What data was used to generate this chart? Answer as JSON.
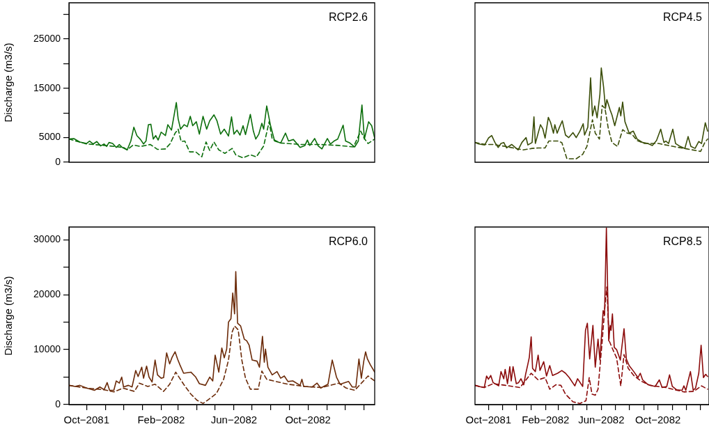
{
  "chart_data": [
    {
      "type": "line",
      "title": "RCP2.6",
      "ylabel": "Discharge (m3/s)",
      "xlim": [
        "2081-09-02",
        "2083-01-19"
      ],
      "ylim": [
        0,
        32300
      ],
      "yticks": [
        0,
        5000,
        {
          "value": 10000,
          "label": null
        },
        15000,
        {
          "value": 20000,
          "label": null
        },
        25000,
        {
          "value": 30000,
          "label": null
        }
      ],
      "tick_labels": "y",
      "grid": false,
      "legend": false,
      "series": [
        {
          "color": "#0b6e0b",
          "line_style": "solid",
          "x": [
            "2081-09-02",
            "2081-09-10",
            "2081-09-20",
            "2081-10-01",
            "2081-10-06",
            "2081-10-12",
            "2081-10-18",
            "2081-10-24",
            "2081-10-30",
            "2081-11-03",
            "2081-11-07",
            "2081-11-13",
            "2081-11-19",
            "2081-11-24",
            "2081-11-29",
            "2081-12-07",
            "2081-12-13",
            "2081-12-18",
            "2081-12-23",
            "2081-12-29",
            "2082-01-03",
            "2082-01-07",
            "2082-01-11",
            "2082-01-15",
            "2082-01-19",
            "2082-01-23",
            "2082-01-27",
            "2082-02-01",
            "2082-02-08",
            "2082-02-12",
            "2082-02-18",
            "2082-02-23",
            "2082-02-26",
            "2082-03-01",
            "2082-03-05",
            "2082-03-11",
            "2082-03-16",
            "2082-03-21",
            "2082-03-25",
            "2082-03-31",
            "2082-04-05",
            "2082-04-11",
            "2082-04-17",
            "2082-04-22",
            "2082-04-29",
            "2082-05-04",
            "2082-05-10",
            "2082-05-16",
            "2082-05-23",
            "2082-05-28",
            "2082-06-01",
            "2082-06-06",
            "2082-06-11",
            "2082-06-16",
            "2082-06-20",
            "2082-06-28",
            "2082-07-03",
            "2082-07-07",
            "2082-07-12",
            "2082-07-17",
            "2082-07-20",
            "2082-07-25",
            "2082-07-31",
            "2082-08-07",
            "2082-08-17",
            "2082-08-25",
            "2082-08-30",
            "2082-09-07",
            "2082-09-18",
            "2082-09-26",
            "2082-09-30",
            "2082-10-04",
            "2082-10-12",
            "2082-10-18",
            "2082-10-24",
            "2082-11-02",
            "2082-11-07",
            "2082-11-13",
            "2082-11-19",
            "2082-11-28",
            "2082-12-02",
            "2082-12-09",
            "2082-12-17",
            "2082-12-23",
            "2082-12-29",
            "2083-01-02",
            "2083-01-09",
            "2083-01-14",
            "2083-01-19"
          ],
          "values": [
            4700,
            4800,
            4100,
            3800,
            4300,
            3700,
            4200,
            3300,
            3700,
            3200,
            4000,
            3800,
            3000,
            3600,
            3000,
            2500,
            4300,
            7100,
            5400,
            4600,
            3700,
            4300,
            7600,
            7700,
            4700,
            5400,
            4500,
            6100,
            5400,
            7600,
            6500,
            10000,
            12100,
            8800,
            6700,
            7600,
            7200,
            9300,
            7400,
            8200,
            5700,
            9300,
            6700,
            8400,
            9600,
            8400,
            5700,
            6700,
            5300,
            9200,
            5700,
            6500,
            5500,
            7400,
            5600,
            9700,
            6300,
            4700,
            5700,
            7900,
            6700,
            11400,
            7600,
            4300,
            3900,
            5900,
            4300,
            4600,
            3000,
            3400,
            4500,
            3400,
            4800,
            3300,
            2700,
            4800,
            3700,
            4300,
            4700,
            7500,
            4300,
            3900,
            3100,
            4300,
            11600,
            4700,
            8200,
            7400,
            4900
          ]
        },
        {
          "color": "#0b6e0b",
          "line_style": "dashed",
          "x": [
            "2081-09-02",
            "2081-10-01",
            "2081-11-01",
            "2081-12-01",
            "2081-12-07",
            "2081-12-17",
            "2081-12-29",
            "2082-01-14",
            "2082-01-26",
            "2082-02-08",
            "2082-02-16",
            "2082-02-24",
            "2082-03-01",
            "2082-03-06",
            "2082-03-12",
            "2082-03-20",
            "2082-03-30",
            "2082-04-09",
            "2082-04-16",
            "2082-04-22",
            "2082-04-29",
            "2082-05-07",
            "2082-05-17",
            "2082-05-29",
            "2082-06-04",
            "2082-06-16",
            "2082-06-28",
            "2082-07-08",
            "2082-07-20",
            "2082-07-29",
            "2082-08-03",
            "2082-08-17",
            "2082-09-18",
            "2082-10-20",
            "2082-11-21",
            "2082-12-15",
            "2082-12-27",
            "2083-01-02",
            "2083-01-08",
            "2083-01-19"
          ],
          "values": [
            4700,
            3700,
            3400,
            3000,
            2500,
            3500,
            3200,
            3600,
            2600,
            2700,
            3800,
            5900,
            6700,
            4200,
            4300,
            2100,
            2100,
            1100,
            4100,
            2400,
            4100,
            2500,
            1800,
            2800,
            1500,
            900,
            1500,
            1100,
            3300,
            8200,
            4700,
            3900,
            3600,
            3600,
            3400,
            3100,
            6300,
            4800,
            3800,
            4700
          ]
        }
      ]
    },
    {
      "type": "line",
      "title": "RCP4.5",
      "xlim": [
        "2081-09-02",
        "2083-01-19"
      ],
      "ylim": [
        0,
        32300
      ],
      "tick_labels": false,
      "grid": false,
      "legend": false,
      "series": [
        {
          "color": "#3a4d08",
          "line_style": "solid",
          "x": [
            "2081-09-02",
            "2081-09-10",
            "2081-09-23",
            "2081-10-01",
            "2081-10-08",
            "2081-10-15",
            "2081-10-22",
            "2081-10-28",
            "2081-11-03",
            "2081-11-09",
            "2081-11-20",
            "2081-12-04",
            "2081-12-12",
            "2081-12-21",
            "2081-12-25",
            "2082-01-03",
            "2082-01-07",
            "2082-01-10",
            "2082-01-21",
            "2082-01-26",
            "2082-01-31",
            "2082-02-07",
            "2082-02-12",
            "2082-02-18",
            "2082-02-21",
            "2082-02-26",
            "2082-03-03",
            "2082-03-09",
            "2082-03-16",
            "2082-03-23",
            "2082-04-01",
            "2082-04-08",
            "2082-04-16",
            "2082-04-23",
            "2082-04-26",
            "2082-05-03",
            "2082-05-09",
            "2082-05-13",
            "2082-05-18",
            "2082-05-23",
            "2082-05-29",
            "2082-06-01",
            "2082-06-06",
            "2082-06-10",
            "2082-06-13",
            "2082-06-20",
            "2082-06-24",
            "2082-06-30",
            "2082-07-10",
            "2082-07-13",
            "2082-07-17",
            "2082-07-22",
            "2082-07-31",
            "2082-08-09",
            "2082-08-17",
            "2082-08-29",
            "2082-09-09",
            "2082-09-19",
            "2082-09-28",
            "2082-10-07",
            "2082-10-14",
            "2082-10-18",
            "2082-10-24",
            "2082-11-02",
            "2082-11-08",
            "2082-11-18",
            "2082-11-28",
            "2082-12-05",
            "2082-12-11",
            "2082-12-20",
            "2082-12-28",
            "2083-01-03",
            "2083-01-11",
            "2083-01-16"
          ],
          "values": [
            4000,
            3700,
            3500,
            4900,
            5400,
            4000,
            3000,
            3800,
            4000,
            2900,
            3600,
            2500,
            4000,
            5000,
            3500,
            4000,
            9200,
            3800,
            7600,
            6800,
            4900,
            9100,
            8000,
            5900,
            7600,
            5900,
            7100,
            8400,
            5500,
            5000,
            6000,
            5000,
            6300,
            7800,
            5500,
            7100,
            17100,
            9400,
            11400,
            9000,
            13700,
            19100,
            15200,
            10900,
            12700,
            10600,
            9600,
            7400,
            11100,
            9400,
            12200,
            8200,
            5900,
            6300,
            4700,
            4000,
            3800,
            3400,
            4400,
            6700,
            4000,
            4300,
            3800,
            6700,
            3800,
            3200,
            2800,
            5200,
            3200,
            2800,
            4200,
            3800,
            8000,
            6300
          ]
        },
        {
          "color": "#3a4d08",
          "line_style": "dashed",
          "x": [
            "2081-09-02",
            "2081-09-25",
            "2081-10-11",
            "2081-11-07",
            "2081-12-15",
            "2082-01-03",
            "2082-01-16",
            "2082-01-31",
            "2082-02-08",
            "2082-02-27",
            "2082-03-08",
            "2082-03-19",
            "2082-04-08",
            "2082-04-22",
            "2082-05-01",
            "2082-05-13",
            "2082-05-19",
            "2082-05-28",
            "2082-06-03",
            "2082-06-09",
            "2082-06-16",
            "2082-06-24",
            "2082-07-06",
            "2082-07-17",
            "2082-07-27",
            "2082-08-06",
            "2082-08-17",
            "2082-09-02",
            "2082-10-02",
            "2082-11-03",
            "2082-12-03",
            "2083-01-01",
            "2083-01-10",
            "2083-01-16"
          ],
          "values": [
            4000,
            3600,
            3600,
            3200,
            2500,
            2800,
            2900,
            2900,
            4300,
            4300,
            4000,
            700,
            700,
            1600,
            3200,
            8600,
            5900,
            4700,
            11500,
            10900,
            6900,
            4000,
            3200,
            6600,
            5900,
            5700,
            4400,
            3800,
            3800,
            3200,
            2700,
            2200,
            4000,
            4700
          ]
        }
      ]
    },
    {
      "type": "line",
      "title": "RCP6.0",
      "ylabel": "Discharge (m3/s)",
      "xlim": [
        "2081-09-02",
        "2083-01-19"
      ],
      "ylim": [
        0,
        32300
      ],
      "yticks": [
        0,
        {
          "value": 5000,
          "label": null
        },
        10000,
        {
          "value": 15000,
          "label": null
        },
        20000,
        {
          "value": 25000,
          "label": null
        },
        30000
      ],
      "xticks": [
        {
          "value": "2081-10-01",
          "label": "Oct−2081"
        },
        {
          "value": "2081-11-01",
          "label": null
        },
        {
          "value": "2081-12-01",
          "label": null
        },
        {
          "value": "2082-01-01",
          "label": null
        },
        {
          "value": "2082-02-01",
          "label": "Feb−2082"
        },
        {
          "value": "2082-03-01",
          "label": null
        },
        {
          "value": "2082-04-01",
          "label": null
        },
        {
          "value": "2082-05-01",
          "label": null
        },
        {
          "value": "2082-06-01",
          "label": "Jun−2082"
        },
        {
          "value": "2082-07-01",
          "label": null
        },
        {
          "value": "2082-08-01",
          "label": null
        },
        {
          "value": "2082-09-01",
          "label": null
        },
        {
          "value": "2082-10-01",
          "label": "Oct−2082"
        },
        {
          "value": "2082-11-01",
          "label": null
        },
        {
          "value": "2082-12-01",
          "label": null
        },
        {
          "value": "2083-01-01",
          "label": null
        }
      ],
      "grid": false,
      "legend": false,
      "series": [
        {
          "color": "#6b2a08",
          "line_style": "solid",
          "x": [
            "2081-09-02",
            "2081-09-12",
            "2081-09-20",
            "2081-10-01",
            "2081-10-14",
            "2081-10-23",
            "2081-10-30",
            "2081-11-04",
            "2081-11-08",
            "2081-11-15",
            "2081-11-19",
            "2081-11-24",
            "2081-11-28",
            "2081-12-01",
            "2081-12-09",
            "2081-12-15",
            "2081-12-21",
            "2081-12-25",
            "2081-12-31",
            "2082-01-03",
            "2082-01-08",
            "2082-01-12",
            "2082-01-17",
            "2082-01-22",
            "2082-01-26",
            "2082-02-01",
            "2082-02-05",
            "2082-02-10",
            "2082-02-15",
            "2082-02-19",
            "2082-02-24",
            "2082-02-28",
            "2082-03-04",
            "2082-03-10",
            "2082-03-22",
            "2082-03-30",
            "2082-04-05",
            "2082-04-15",
            "2082-04-22",
            "2082-04-27",
            "2082-05-01",
            "2082-05-07",
            "2082-05-12",
            "2082-05-16",
            "2082-05-20",
            "2082-05-23",
            "2082-05-27",
            "2082-05-30",
            "2082-06-02",
            "2082-06-04",
            "2082-06-07",
            "2082-06-12",
            "2082-06-18",
            "2082-06-22",
            "2082-06-26",
            "2082-07-01",
            "2082-07-09",
            "2082-07-13",
            "2082-07-18",
            "2082-07-21",
            "2082-07-23",
            "2082-07-27",
            "2082-08-03",
            "2082-08-11",
            "2082-08-17",
            "2082-08-23",
            "2082-08-29",
            "2082-09-06",
            "2082-09-18",
            "2082-09-21",
            "2082-09-24",
            "2082-10-08",
            "2082-10-16",
            "2082-10-22",
            "2082-11-03",
            "2082-11-10",
            "2082-11-17",
            "2082-11-23",
            "2082-12-07",
            "2082-12-13",
            "2082-12-19",
            "2082-12-24",
            "2082-12-28",
            "2083-01-01",
            "2083-01-04",
            "2083-01-07",
            "2083-01-12",
            "2083-01-19"
          ],
          "values": [
            3500,
            3300,
            3500,
            3000,
            2600,
            3200,
            2700,
            4000,
            2600,
            2600,
            4300,
            3900,
            5000,
            3200,
            3500,
            3200,
            6200,
            5100,
            6800,
            4800,
            7000,
            5000,
            4100,
            8100,
            5400,
            4800,
            4900,
            9400,
            7400,
            8600,
            9600,
            8300,
            7200,
            5700,
            5900,
            5000,
            3800,
            3500,
            5000,
            4300,
            9000,
            5900,
            10300,
            8500,
            10100,
            15000,
            15600,
            20300,
            16500,
            24200,
            14800,
            14300,
            11900,
            11600,
            10800,
            8100,
            7900,
            6800,
            12400,
            7700,
            10100,
            6800,
            5400,
            6000,
            4800,
            5200,
            4200,
            4300,
            3500,
            4600,
            3300,
            3200,
            3900,
            3000,
            3700,
            8100,
            5000,
            3700,
            4200,
            3200,
            3200,
            8300,
            4800,
            7900,
            9600,
            8300,
            7200,
            5900
          ]
        },
        {
          "color": "#6b2a08",
          "line_style": "dashed",
          "x": [
            "2081-09-02",
            "2081-10-01",
            "2081-10-30",
            "2081-11-15",
            "2081-11-30",
            "2081-12-19",
            "2081-12-27",
            "2082-01-10",
            "2082-01-22",
            "2082-02-05",
            "2082-02-15",
            "2082-02-25",
            "2082-03-10",
            "2082-03-22",
            "2082-04-01",
            "2082-04-11",
            "2082-04-21",
            "2082-05-03",
            "2082-05-15",
            "2082-05-23",
            "2082-05-29",
            "2082-06-02",
            "2082-06-08",
            "2082-06-14",
            "2082-06-20",
            "2082-06-28",
            "2082-07-03",
            "2082-07-11",
            "2082-07-17",
            "2082-07-25",
            "2082-08-09",
            "2082-08-29",
            "2082-09-26",
            "2082-10-24",
            "2082-11-21",
            "2082-12-03",
            "2082-12-17",
            "2082-12-29",
            "2083-01-08",
            "2083-01-19"
          ],
          "values": [
            3500,
            3000,
            2700,
            2300,
            3000,
            2400,
            3900,
            3300,
            3700,
            2400,
            3700,
            5900,
            3700,
            1900,
            800,
            200,
            1000,
            2000,
            4600,
            8100,
            13200,
            14300,
            13600,
            8100,
            4800,
            2800,
            2800,
            2800,
            6100,
            4600,
            4200,
            3700,
            3300,
            3100,
            3900,
            3000,
            2600,
            4000,
            5200,
            4300
          ]
        }
      ]
    },
    {
      "type": "line",
      "title": "RCP8.5",
      "xlim": [
        "2081-09-02",
        "2083-01-19"
      ],
      "ylim": [
        0,
        32300
      ],
      "xticks": [
        {
          "value": "2081-10-01",
          "label": "Oct−2081"
        },
        {
          "value": "2081-11-01",
          "label": null
        },
        {
          "value": "2081-12-01",
          "label": null
        },
        {
          "value": "2082-01-01",
          "label": null
        },
        {
          "value": "2082-02-01",
          "label": "Feb−2082"
        },
        {
          "value": "2082-03-01",
          "label": null
        },
        {
          "value": "2082-04-01",
          "label": null
        },
        {
          "value": "2082-05-01",
          "label": null
        },
        {
          "value": "2082-06-01",
          "label": "Jun−2082"
        },
        {
          "value": "2082-07-01",
          "label": null
        },
        {
          "value": "2082-08-01",
          "label": null
        },
        {
          "value": "2082-09-01",
          "label": null
        },
        {
          "value": "2082-10-01",
          "label": "Oct−2082"
        },
        {
          "value": "2082-11-01",
          "label": null
        },
        {
          "value": "2082-12-01",
          "label": null
        },
        {
          "value": "2083-01-01",
          "label": null
        }
      ],
      "tick_labels": "x",
      "grid": false,
      "legend": false,
      "series": [
        {
          "color": "#8b0a0a",
          "line_style": "solid",
          "x": [
            "2081-09-02",
            "2081-09-10",
            "2081-09-22",
            "2081-09-27",
            "2081-10-01",
            "2081-10-06",
            "2081-10-11",
            "2081-10-23",
            "2081-10-28",
            "2081-11-03",
            "2081-11-06",
            "2081-11-11",
            "2081-11-16",
            "2081-11-19",
            "2081-11-23",
            "2081-11-30",
            "2081-12-05",
            "2081-12-10",
            "2081-12-16",
            "2081-12-20",
            "2081-12-25",
            "2081-12-28",
            "2082-01-01",
            "2082-01-04",
            "2082-01-10",
            "2082-01-16",
            "2082-01-20",
            "2082-01-28",
            "2082-02-03",
            "2082-02-10",
            "2082-02-16",
            "2082-02-27",
            "2082-03-08",
            "2082-03-16",
            "2082-03-24",
            "2082-04-05",
            "2082-04-11",
            "2082-04-22",
            "2082-04-28",
            "2082-05-02",
            "2082-05-07",
            "2082-05-14",
            "2082-05-19",
            "2082-05-25",
            "2082-05-29",
            "2082-06-05",
            "2082-06-08",
            "2082-06-12",
            "2082-06-17",
            "2082-06-20",
            "2082-06-22",
            "2082-06-25",
            "2082-06-29",
            "2082-07-04",
            "2082-07-12",
            "2082-07-20",
            "2082-07-25",
            "2082-07-31",
            "2082-08-10",
            "2082-08-19",
            "2082-08-24",
            "2082-08-29",
            "2082-09-10",
            "2082-09-25",
            "2082-10-04",
            "2082-10-10",
            "2082-10-20",
            "2082-10-26",
            "2082-11-01",
            "2082-11-10",
            "2082-11-22",
            "2082-11-26",
            "2082-11-30",
            "2082-12-10",
            "2082-12-16",
            "2082-12-21",
            "2082-12-28",
            "2083-01-02",
            "2083-01-07",
            "2083-01-12",
            "2083-01-16"
          ],
          "values": [
            3500,
            3300,
            3100,
            5200,
            4600,
            5300,
            4000,
            3400,
            6000,
            4700,
            6400,
            3800,
            6900,
            4300,
            6900,
            3800,
            4000,
            4700,
            3600,
            5500,
            7400,
            8600,
            12300,
            6600,
            6000,
            9000,
            6200,
            7800,
            5200,
            7100,
            5300,
            5700,
            6200,
            5700,
            4900,
            3400,
            4700,
            3300,
            13500,
            14800,
            8300,
            14400,
            6800,
            11900,
            8100,
            17100,
            16300,
            32100,
            11600,
            14400,
            13500,
            16500,
            10400,
            10000,
            8100,
            13800,
            8300,
            7100,
            6000,
            4900,
            5700,
            4500,
            3600,
            3300,
            4500,
            3100,
            3300,
            5400,
            3300,
            2700,
            2600,
            3400,
            2600,
            6000,
            2600,
            3000,
            5700,
            10800,
            4900,
            5500,
            5100
          ]
        },
        {
          "color": "#8b0a0a",
          "line_style": "dashed",
          "x": [
            "2081-09-02",
            "2081-09-22",
            "2081-10-11",
            "2081-11-07",
            "2081-12-08",
            "2082-01-01",
            "2082-01-16",
            "2082-01-31",
            "2082-02-10",
            "2082-02-23",
            "2082-03-06",
            "2082-03-16",
            "2082-04-01",
            "2082-04-16",
            "2082-04-29",
            "2082-05-06",
            "2082-05-12",
            "2082-05-19",
            "2082-05-25",
            "2082-06-03",
            "2082-06-09",
            "2082-06-13",
            "2082-06-18",
            "2082-06-26",
            "2082-07-04",
            "2082-07-13",
            "2082-07-20",
            "2082-07-29",
            "2082-08-10",
            "2082-08-25",
            "2082-09-14",
            "2082-10-18",
            "2082-11-26",
            "2082-12-17",
            "2083-01-03",
            "2083-01-16"
          ],
          "values": [
            3500,
            3100,
            3800,
            3500,
            3100,
            5700,
            4500,
            4900,
            2800,
            3600,
            3500,
            1900,
            500,
            200,
            700,
            4900,
            1900,
            1700,
            2800,
            11600,
            18000,
            21400,
            11600,
            10000,
            8500,
            3400,
            9100,
            6600,
            5300,
            4300,
            3500,
            3100,
            2300,
            2400,
            3400,
            2800
          ]
        }
      ]
    }
  ]
}
